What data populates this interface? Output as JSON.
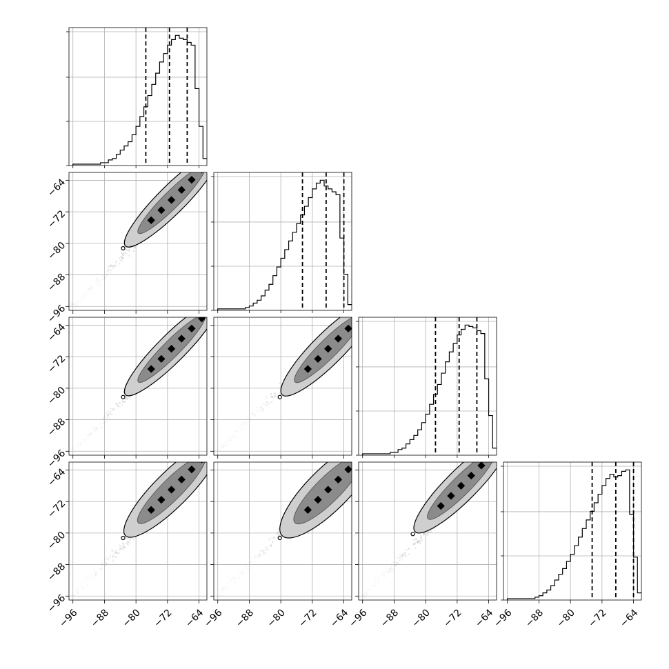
{
  "chart_data": {
    "type": "corner",
    "n_params": 4,
    "axis_range": [
      -97,
      -62
    ],
    "ticks": [
      -96,
      -88,
      -80,
      -72,
      -64
    ],
    "tick_labels": [
      "−96",
      "−88",
      "−80",
      "−72",
      "−64"
    ],
    "grid": true,
    "histograms": [
      {
        "param": 1,
        "edges": [
          -96,
          -94,
          -92,
          -90,
          -89,
          -88,
          -87,
          -86,
          -85,
          -84,
          -83,
          -82,
          -81,
          -80,
          -79,
          -78,
          -77,
          -76,
          -75,
          -74,
          -73,
          -72,
          -71,
          -70,
          -69,
          -68,
          -67,
          -66,
          -65,
          -64,
          -63,
          -62
        ],
        "counts": [
          0.01,
          0.01,
          0.01,
          0.01,
          0.02,
          0.02,
          0.04,
          0.05,
          0.08,
          0.11,
          0.14,
          0.17,
          0.22,
          0.28,
          0.35,
          0.42,
          0.5,
          0.58,
          0.66,
          0.74,
          0.8,
          0.86,
          0.9,
          0.93,
          0.91,
          0.9,
          0.88,
          0.86,
          0.55,
          0.28,
          0.05
        ],
        "quantiles": [
          -77.5,
          -71.5,
          -67.0
        ]
      },
      {
        "param": 2,
        "edges": [
          -96,
          -94,
          -92,
          -90,
          -89,
          -88,
          -87,
          -86,
          -85,
          -84,
          -83,
          -82,
          -81,
          -80,
          -79,
          -78,
          -77,
          -76,
          -75,
          -74,
          -73,
          -72,
          -71,
          -70,
          -69,
          -68,
          -67,
          -66,
          -65,
          -64,
          -63,
          -62
        ],
        "counts": [
          0.01,
          0.01,
          0.01,
          0.01,
          0.02,
          0.03,
          0.05,
          0.07,
          0.1,
          0.14,
          0.18,
          0.24,
          0.3,
          0.36,
          0.42,
          0.48,
          0.54,
          0.6,
          0.66,
          0.72,
          0.78,
          0.84,
          0.88,
          0.9,
          0.86,
          0.84,
          0.82,
          0.8,
          0.5,
          0.25,
          0.04
        ],
        "quantiles": [
          -74.5,
          -68.5,
          -64.0
        ]
      },
      {
        "param": 3,
        "edges": [
          -96,
          -94,
          -92,
          -90,
          -89,
          -88,
          -87,
          -86,
          -85,
          -84,
          -83,
          -82,
          -81,
          -80,
          -79,
          -78,
          -77,
          -76,
          -75,
          -74,
          -73,
          -72,
          -71,
          -70,
          -69,
          -68,
          -67,
          -66,
          -65,
          -64,
          -63,
          -62
        ],
        "counts": [
          0.01,
          0.01,
          0.01,
          0.01,
          0.02,
          0.02,
          0.04,
          0.05,
          0.08,
          0.11,
          0.14,
          0.18,
          0.23,
          0.29,
          0.36,
          0.43,
          0.5,
          0.58,
          0.66,
          0.73,
          0.79,
          0.85,
          0.89,
          0.92,
          0.91,
          0.9,
          0.88,
          0.86,
          0.54,
          0.28,
          0.05
        ],
        "quantiles": [
          -77.5,
          -71.5,
          -67.0
        ]
      },
      {
        "param": 4,
        "edges": [
          -96,
          -94,
          -92,
          -90,
          -89,
          -88,
          -87,
          -86,
          -85,
          -84,
          -83,
          -82,
          -81,
          -80,
          -79,
          -78,
          -77,
          -76,
          -75,
          -74,
          -73,
          -72,
          -71,
          -70,
          -69,
          -68,
          -67,
          -66,
          -65,
          -64,
          -63,
          -62
        ],
        "counts": [
          0.01,
          0.01,
          0.01,
          0.01,
          0.02,
          0.03,
          0.05,
          0.07,
          0.1,
          0.14,
          0.18,
          0.22,
          0.27,
          0.32,
          0.38,
          0.44,
          0.5,
          0.56,
          0.62,
          0.68,
          0.74,
          0.8,
          0.85,
          0.88,
          0.86,
          0.87,
          0.9,
          0.91,
          0.6,
          0.3,
          0.05
        ],
        "quantiles": [
          -74.5,
          -68.5,
          -64.0
        ]
      }
    ],
    "scatter_panels": [
      {
        "row": 2,
        "col": 1,
        "center": [
          -71,
          -69
        ],
        "spread": 6,
        "width": 1.6
      },
      {
        "row": 3,
        "col": 1,
        "center": [
          -71,
          -70
        ],
        "spread": 6,
        "width": 1.6
      },
      {
        "row": 3,
        "col": 2,
        "center": [
          -68,
          -70
        ],
        "spread": 6,
        "width": 1.8
      },
      {
        "row": 4,
        "col": 1,
        "center": [
          -71,
          -69
        ],
        "spread": 6,
        "width": 2.0
      },
      {
        "row": 4,
        "col": 2,
        "center": [
          -68,
          -69
        ],
        "spread": 6,
        "width": 2.4
      },
      {
        "row": 4,
        "col": 3,
        "center": [
          -71,
          -68
        ],
        "spread": 6,
        "width": 1.8
      }
    ]
  }
}
